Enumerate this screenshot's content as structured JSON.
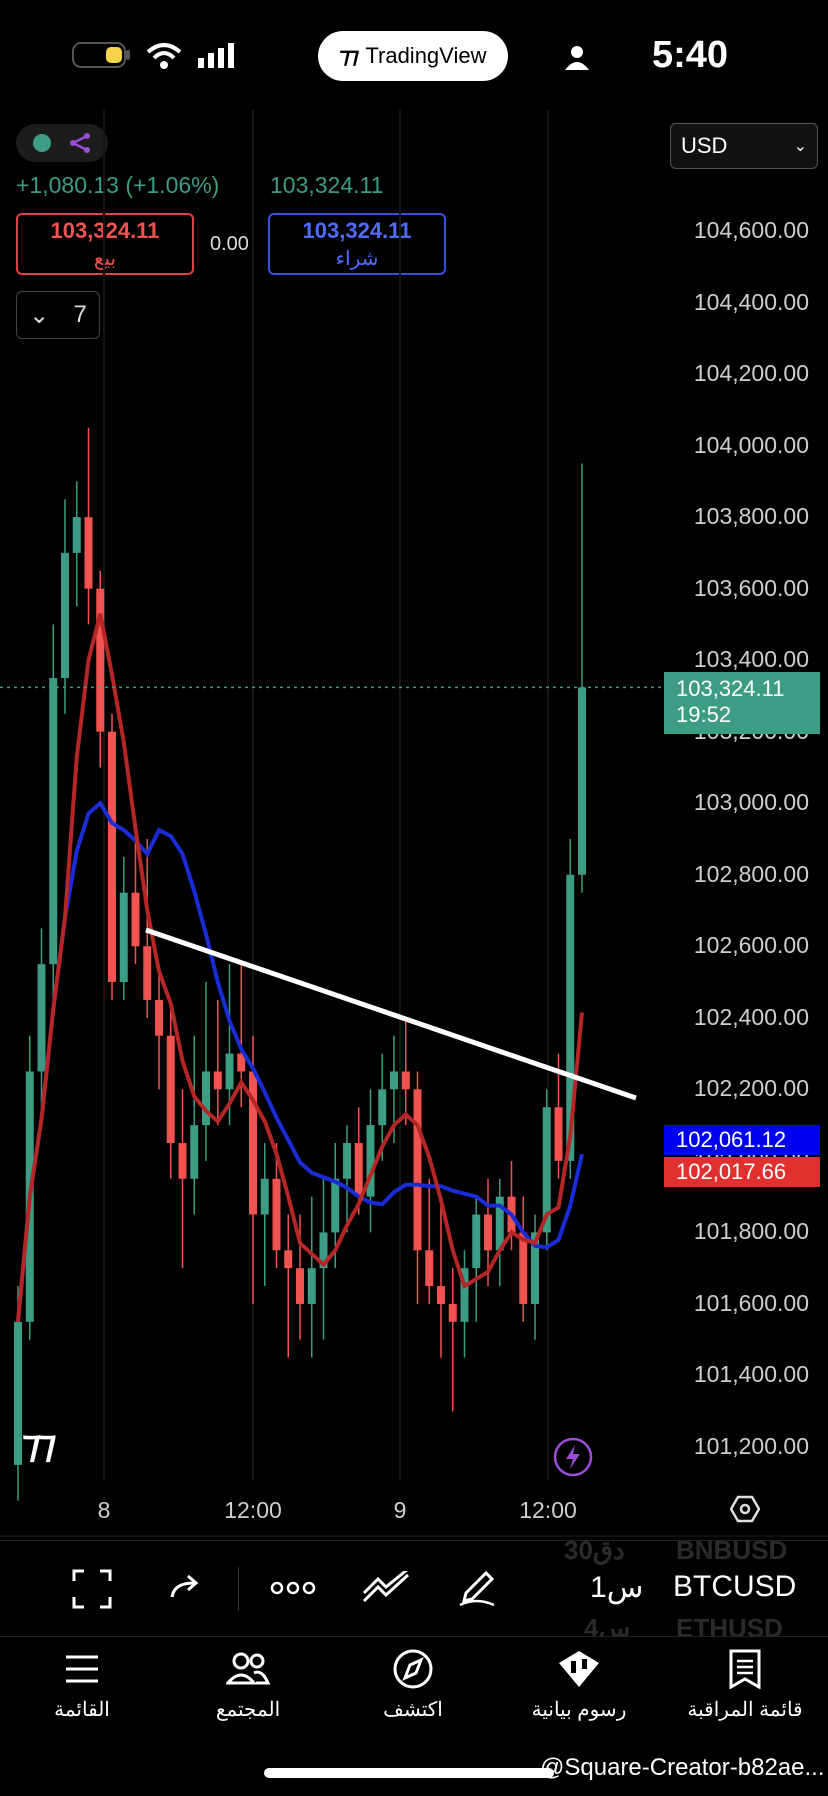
{
  "status_bar": {
    "time": "5:40",
    "app_pill": "TradingView"
  },
  "header": {
    "currency": "USD",
    "change": "+1,080.13 (+1.06%)",
    "last_price": "103,324.11",
    "sell": {
      "price": "103,324.11",
      "label": "بيع"
    },
    "spread": "0.00",
    "buy": {
      "price": "103,324.11",
      "label": "شراء"
    },
    "collapse_count": "7"
  },
  "chart_data": {
    "type": "candlestick",
    "symbol": "BTCUSD",
    "interval": "1س",
    "y_axis_ticks": [
      "104,600.00",
      "104,400.00",
      "104,200.00",
      "104,000.00",
      "103,800.00",
      "103,600.00",
      "103,400.00",
      "103,200.00",
      "103,000.00",
      "102,800.00",
      "102,600.00",
      "102,400.00",
      "102,200.00",
      "102,000.00",
      "101,800.00",
      "101,600.00",
      "101,400.00",
      "101,200.00"
    ],
    "x_axis_ticks": [
      "8",
      "12:00",
      "9",
      "12:00"
    ],
    "ylim": [
      101100,
      104700
    ],
    "candles": [
      {
        "o": 101150,
        "h": 101650,
        "l": 101050,
        "c": 101550
      },
      {
        "o": 101550,
        "h": 102350,
        "l": 101500,
        "c": 102250
      },
      {
        "o": 102250,
        "h": 102650,
        "l": 102150,
        "c": 102550
      },
      {
        "o": 102550,
        "h": 103500,
        "l": 102450,
        "c": 103350
      },
      {
        "o": 103350,
        "h": 103850,
        "l": 103250,
        "c": 103700
      },
      {
        "o": 103700,
        "h": 103900,
        "l": 103550,
        "c": 103800
      },
      {
        "o": 103800,
        "h": 104050,
        "l": 103500,
        "c": 103600
      },
      {
        "o": 103600,
        "h": 103650,
        "l": 103100,
        "c": 103200
      },
      {
        "o": 103200,
        "h": 103250,
        "l": 102450,
        "c": 102500
      },
      {
        "o": 102500,
        "h": 102850,
        "l": 102450,
        "c": 102750
      },
      {
        "o": 102750,
        "h": 102950,
        "l": 102550,
        "c": 102600
      },
      {
        "o": 102600,
        "h": 102900,
        "l": 102400,
        "c": 102450
      },
      {
        "o": 102450,
        "h": 102550,
        "l": 102200,
        "c": 102350
      },
      {
        "o": 102350,
        "h": 102450,
        "l": 101950,
        "c": 102050
      },
      {
        "o": 102050,
        "h": 102200,
        "l": 101700,
        "c": 101950
      },
      {
        "o": 101950,
        "h": 102350,
        "l": 101850,
        "c": 102100
      },
      {
        "o": 102100,
        "h": 102500,
        "l": 102000,
        "c": 102250
      },
      {
        "o": 102250,
        "h": 102450,
        "l": 102100,
        "c": 102200
      },
      {
        "o": 102200,
        "h": 102550,
        "l": 102100,
        "c": 102300
      },
      {
        "o": 102300,
        "h": 102550,
        "l": 102150,
        "c": 102250
      },
      {
        "o": 102250,
        "h": 102350,
        "l": 101600,
        "c": 101850
      },
      {
        "o": 101850,
        "h": 102050,
        "l": 101650,
        "c": 101950
      },
      {
        "o": 101950,
        "h": 102050,
        "l": 101700,
        "c": 101750
      },
      {
        "o": 101750,
        "h": 101850,
        "l": 101450,
        "c": 101700
      },
      {
        "o": 101700,
        "h": 101850,
        "l": 101500,
        "c": 101600
      },
      {
        "o": 101600,
        "h": 101900,
        "l": 101450,
        "c": 101700
      },
      {
        "o": 101700,
        "h": 101950,
        "l": 101500,
        "c": 101800
      },
      {
        "o": 101800,
        "h": 102050,
        "l": 101700,
        "c": 101950
      },
      {
        "o": 101950,
        "h": 102100,
        "l": 101800,
        "c": 102050
      },
      {
        "o": 102050,
        "h": 102150,
        "l": 101850,
        "c": 101900
      },
      {
        "o": 101900,
        "h": 102200,
        "l": 101800,
        "c": 102100
      },
      {
        "o": 102100,
        "h": 102300,
        "l": 102000,
        "c": 102200
      },
      {
        "o": 102200,
        "h": 102350,
        "l": 102050,
        "c": 102250
      },
      {
        "o": 102250,
        "h": 102400,
        "l": 102100,
        "c": 102200
      },
      {
        "o": 102200,
        "h": 102250,
        "l": 101600,
        "c": 101750
      },
      {
        "o": 101750,
        "h": 101950,
        "l": 101600,
        "c": 101650
      },
      {
        "o": 101650,
        "h": 101900,
        "l": 101450,
        "c": 101600
      },
      {
        "o": 101600,
        "h": 101700,
        "l": 101300,
        "c": 101550
      },
      {
        "o": 101550,
        "h": 101750,
        "l": 101450,
        "c": 101700
      },
      {
        "o": 101700,
        "h": 101900,
        "l": 101550,
        "c": 101850
      },
      {
        "o": 101850,
        "h": 101950,
        "l": 101650,
        "c": 101750
      },
      {
        "o": 101750,
        "h": 101950,
        "l": 101650,
        "c": 101900
      },
      {
        "o": 101900,
        "h": 102000,
        "l": 101750,
        "c": 101800
      },
      {
        "o": 101800,
        "h": 101900,
        "l": 101550,
        "c": 101600
      },
      {
        "o": 101600,
        "h": 101850,
        "l": 101500,
        "c": 101800
      },
      {
        "o": 101800,
        "h": 102200,
        "l": 101750,
        "c": 102150
      },
      {
        "o": 102150,
        "h": 102300,
        "l": 101950,
        "c": 102000
      },
      {
        "o": 102000,
        "h": 102900,
        "l": 101950,
        "c": 102800
      },
      {
        "o": 102800,
        "h": 103950,
        "l": 102750,
        "c": 103324
      }
    ],
    "current_price": {
      "value": "103,324.11",
      "countdown": "19:52"
    },
    "ma_blue_value": "102,061.12",
    "ma_red_value": "102,017.66",
    "colors": {
      "up": "#3c9c84",
      "down": "#f05350",
      "ma_blue": "#1a2cd6",
      "ma_red": "#b52626",
      "trendline": "#ffffff"
    }
  },
  "toolbar": {
    "symbol": "BTCUSD",
    "interval": "1س",
    "ghost_symbols": [
      "BNBUSD",
      "ETHUSD"
    ],
    "ghost_intervals": [
      "30دق",
      "4س"
    ]
  },
  "bottom_nav": [
    {
      "label": "القائمة",
      "icon": "menu-icon"
    },
    {
      "label": "المجتمع",
      "icon": "community-icon"
    },
    {
      "label": "اكتشف",
      "icon": "compass-icon"
    },
    {
      "label": "رسوم بيانية",
      "icon": "chart-candle-icon"
    },
    {
      "label": "قائمة المراقبة",
      "icon": "watchlist-icon"
    }
  ],
  "watermark": "@Square-Creator-b82ae..."
}
